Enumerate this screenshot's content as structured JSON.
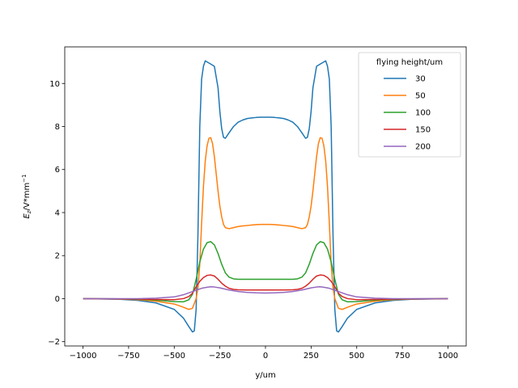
{
  "chart_data": {
    "type": "line",
    "xlabel": "y/um",
    "ylabel_main": "E",
    "ylabel_sub": "z",
    "ylabel_rest": "/V*mm",
    "ylabel_sup": "−1",
    "xlim": [
      -1100,
      1100
    ],
    "ylim": [
      -2.2,
      11.7
    ],
    "xticks": [
      -1000,
      -750,
      -500,
      -250,
      0,
      250,
      500,
      750,
      1000
    ],
    "xtick_labels": [
      "−1000",
      "−750",
      "−500",
      "−250",
      "0",
      "250",
      "500",
      "750",
      "1000"
    ],
    "yticks": [
      -2,
      0,
      2,
      4,
      6,
      8,
      10
    ],
    "ytick_labels": [
      "−2",
      "0",
      "2",
      "4",
      "6",
      "8",
      "10"
    ],
    "grid": false,
    "legend": {
      "title": "flying height/um",
      "placement": "top-right"
    },
    "series": [
      {
        "name": "30",
        "color": "#1f77b4",
        "x": [
          -1000,
          -800,
          -700,
          -600,
          -500,
          -450,
          -420,
          -400,
          -390,
          -380,
          -370,
          -360,
          -350,
          -340,
          -330,
          -320,
          -300,
          -280,
          -260,
          -250,
          -240,
          -230,
          -220,
          -200,
          -175,
          -150,
          -125,
          -100,
          -75,
          -50,
          -25,
          0,
          25,
          50,
          75,
          100,
          125,
          150,
          175,
          200,
          220,
          230,
          240,
          250,
          260,
          280,
          300,
          320,
          330,
          340,
          350,
          360,
          370,
          380,
          390,
          400,
          420,
          450,
          500,
          600,
          700,
          800,
          1000
        ],
        "y": [
          0,
          -0.03,
          -0.08,
          -0.2,
          -0.5,
          -0.9,
          -1.3,
          -1.55,
          -1.5,
          -0.5,
          3.0,
          8.0,
          10.2,
          10.8,
          11.05,
          11.0,
          10.9,
          10.8,
          9.8,
          8.7,
          7.9,
          7.5,
          7.45,
          7.7,
          8.0,
          8.2,
          8.3,
          8.37,
          8.4,
          8.42,
          8.43,
          8.43,
          8.43,
          8.42,
          8.4,
          8.37,
          8.3,
          8.2,
          8.0,
          7.7,
          7.45,
          7.5,
          7.9,
          8.7,
          9.8,
          10.8,
          10.9,
          11.0,
          11.05,
          10.8,
          10.2,
          8.0,
          3.0,
          -0.5,
          -1.5,
          -1.55,
          -1.3,
          -0.9,
          -0.5,
          -0.2,
          -0.08,
          -0.03,
          0
        ]
      },
      {
        "name": "50",
        "color": "#ff7f0e",
        "x": [
          -1000,
          -800,
          -700,
          -600,
          -500,
          -450,
          -420,
          -400,
          -380,
          -370,
          -360,
          -350,
          -340,
          -330,
          -320,
          -310,
          -300,
          -290,
          -280,
          -270,
          -260,
          -250,
          -240,
          -230,
          -220,
          -200,
          -175,
          -150,
          -125,
          -100,
          -75,
          -50,
          -25,
          0,
          25,
          50,
          75,
          100,
          125,
          150,
          175,
          200,
          220,
          230,
          240,
          250,
          260,
          270,
          280,
          290,
          300,
          310,
          320,
          330,
          340,
          350,
          360,
          370,
          380,
          400,
          420,
          450,
          500,
          600,
          700,
          800,
          1000
        ],
        "y": [
          0,
          -0.02,
          -0.05,
          -0.12,
          -0.25,
          -0.4,
          -0.5,
          -0.45,
          0.0,
          0.5,
          1.6,
          3.5,
          5.2,
          6.4,
          7.1,
          7.45,
          7.48,
          7.2,
          6.6,
          5.8,
          5.0,
          4.3,
          3.8,
          3.45,
          3.3,
          3.25,
          3.3,
          3.35,
          3.38,
          3.4,
          3.42,
          3.44,
          3.45,
          3.45,
          3.45,
          3.44,
          3.42,
          3.4,
          3.38,
          3.35,
          3.3,
          3.25,
          3.3,
          3.45,
          3.8,
          4.3,
          5.0,
          5.8,
          6.6,
          7.2,
          7.48,
          7.45,
          7.1,
          6.4,
          5.2,
          3.5,
          1.6,
          0.5,
          0.0,
          -0.45,
          -0.5,
          -0.4,
          -0.25,
          -0.12,
          -0.05,
          -0.02,
          0
        ]
      },
      {
        "name": "100",
        "color": "#2ca02c",
        "x": [
          -1000,
          -800,
          -700,
          -600,
          -500,
          -450,
          -420,
          -400,
          -380,
          -360,
          -340,
          -320,
          -300,
          -280,
          -260,
          -240,
          -220,
          -200,
          -175,
          -150,
          -100,
          -50,
          0,
          50,
          100,
          150,
          175,
          200,
          220,
          240,
          260,
          280,
          300,
          320,
          340,
          360,
          380,
          400,
          420,
          450,
          500,
          600,
          700,
          800,
          1000
        ],
        "y": [
          0,
          -0.01,
          -0.03,
          -0.07,
          -0.14,
          -0.15,
          -0.05,
          0.2,
          0.9,
          1.7,
          2.3,
          2.6,
          2.65,
          2.5,
          2.1,
          1.6,
          1.2,
          1.0,
          0.92,
          0.9,
          0.9,
          0.9,
          0.9,
          0.9,
          0.9,
          0.9,
          0.92,
          1.0,
          1.2,
          1.6,
          2.1,
          2.5,
          2.65,
          2.6,
          2.3,
          1.7,
          0.9,
          0.2,
          -0.05,
          -0.15,
          -0.14,
          -0.07,
          -0.03,
          -0.01,
          0
        ]
      },
      {
        "name": "150",
        "color": "#d62728",
        "x": [
          -1000,
          -800,
          -700,
          -600,
          -500,
          -450,
          -420,
          -400,
          -380,
          -360,
          -340,
          -320,
          -300,
          -280,
          -260,
          -240,
          -220,
          -200,
          -175,
          -150,
          -100,
          -50,
          0,
          50,
          100,
          150,
          175,
          200,
          220,
          240,
          260,
          280,
          300,
          320,
          340,
          360,
          380,
          400,
          420,
          450,
          500,
          600,
          700,
          800,
          1000
        ],
        "y": [
          0,
          -0.01,
          -0.02,
          -0.04,
          -0.05,
          0.0,
          0.1,
          0.25,
          0.55,
          0.8,
          0.98,
          1.08,
          1.1,
          1.05,
          0.9,
          0.72,
          0.58,
          0.48,
          0.43,
          0.41,
          0.4,
          0.4,
          0.4,
          0.4,
          0.4,
          0.41,
          0.43,
          0.48,
          0.58,
          0.72,
          0.9,
          1.05,
          1.1,
          1.08,
          0.98,
          0.8,
          0.55,
          0.25,
          0.1,
          0.0,
          -0.05,
          -0.04,
          -0.02,
          -0.01,
          0
        ]
      },
      {
        "name": "200",
        "color": "#9467bd",
        "x": [
          -1000,
          -800,
          -700,
          -600,
          -500,
          -450,
          -400,
          -350,
          -320,
          -300,
          -280,
          -250,
          -200,
          -150,
          -100,
          -50,
          0,
          50,
          100,
          150,
          200,
          250,
          280,
          300,
          320,
          350,
          400,
          450,
          500,
          600,
          700,
          800,
          1000
        ],
        "y": [
          0,
          0.0,
          0.0,
          0.02,
          0.08,
          0.18,
          0.33,
          0.48,
          0.53,
          0.55,
          0.54,
          0.5,
          0.4,
          0.33,
          0.29,
          0.27,
          0.26,
          0.27,
          0.29,
          0.33,
          0.4,
          0.5,
          0.54,
          0.55,
          0.53,
          0.48,
          0.33,
          0.18,
          0.08,
          0.02,
          0.0,
          0.0,
          0
        ]
      }
    ]
  }
}
